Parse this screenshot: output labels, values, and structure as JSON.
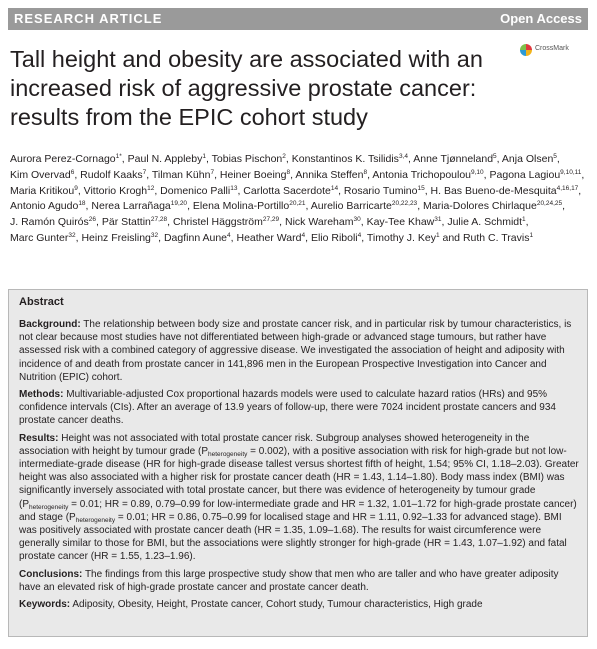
{
  "header": {
    "left_label": "RESEARCH ARTICLE",
    "right_label": "Open Access"
  },
  "title": "Tall height and obesity are associated with an increased risk of aggressive prostate cancer: results from the EPIC cohort study",
  "crossmark_label": "CrossMark",
  "authors": [
    {
      "name": "Aurora Perez-Cornago",
      "sup": "1*"
    },
    {
      "name": "Paul N. Appleby",
      "sup": "1"
    },
    {
      "name": "Tobias Pischon",
      "sup": "2"
    },
    {
      "name": "Konstantinos K. Tsilidis",
      "sup": "3,4"
    },
    {
      "name": "Anne Tjønneland",
      "sup": "5"
    },
    {
      "name": "Anja Olsen",
      "sup": "5"
    },
    {
      "name": "Kim Overvad",
      "sup": "6"
    },
    {
      "name": "Rudolf Kaaks",
      "sup": "7"
    },
    {
      "name": "Tilman Kühn",
      "sup": "7"
    },
    {
      "name": "Heiner Boeing",
      "sup": "8"
    },
    {
      "name": "Annika Steffen",
      "sup": "8"
    },
    {
      "name": "Antonia Trichopoulou",
      "sup": "9,10"
    },
    {
      "name": "Pagona Lagiou",
      "sup": "9,10,11"
    },
    {
      "name": "Maria Kritikou",
      "sup": "9"
    },
    {
      "name": "Vittorio Krogh",
      "sup": "12"
    },
    {
      "name": "Domenico Palli",
      "sup": "13"
    },
    {
      "name": "Carlotta Sacerdote",
      "sup": "14"
    },
    {
      "name": "Rosario Tumino",
      "sup": "15"
    },
    {
      "name": "H. Bas Bueno-de-Mesquita",
      "sup": "4,16,17"
    },
    {
      "name": "Antonio Agudo",
      "sup": "18"
    },
    {
      "name": "Nerea Larrañaga",
      "sup": "19,20"
    },
    {
      "name": "Elena Molina-Portillo",
      "sup": "20,21"
    },
    {
      "name": "Aurelio Barricarte",
      "sup": "20,22,23"
    },
    {
      "name": "Maria-Dolores Chirlaque",
      "sup": "20,24,25"
    },
    {
      "name": "J. Ramón Quirós",
      "sup": "26"
    },
    {
      "name": "Pär Stattin",
      "sup": "27,28"
    },
    {
      "name": "Christel Häggström",
      "sup": "27,29"
    },
    {
      "name": "Nick Wareham",
      "sup": "30"
    },
    {
      "name": "Kay-Tee Khaw",
      "sup": "31"
    },
    {
      "name": "Julie A. Schmidt",
      "sup": "1"
    },
    {
      "name": "Marc Gunter",
      "sup": "32"
    },
    {
      "name": "Heinz Freisling",
      "sup": "32"
    },
    {
      "name": "Dagfinn Aune",
      "sup": "4"
    },
    {
      "name": "Heather Ward",
      "sup": "4"
    },
    {
      "name": "Elio Riboli",
      "sup": "4"
    },
    {
      "name": "Timothy J. Key",
      "sup": "1"
    },
    {
      "name": "Ruth C. Travis",
      "sup": "1"
    }
  ],
  "abstract": {
    "heading": "Abstract",
    "background_label": "Background:",
    "background_text": "The relationship between body size and prostate cancer risk, and in particular risk by tumour characteristics, is not clear because most studies have not differentiated between high-grade or advanced stage tumours, but rather have assessed risk with a combined category of aggressive disease. We investigated the association of height and adiposity with incidence of and death from prostate cancer in 141,896 men in the European Prospective Investigation into Cancer and Nutrition (EPIC) cohort.",
    "methods_label": "Methods:",
    "methods_text": "Multivariable-adjusted Cox proportional hazards models were used to calculate hazard ratios (HRs) and 95% confidence intervals (CIs). After an average of 13.9 years of follow-up, there were 7024 incident prostate cancers and 934 prostate cancer deaths.",
    "results_label": "Results:",
    "results_1": "Height was not associated with total prostate cancer risk. Subgroup analyses showed heterogeneity in the association with height by tumour grade (P",
    "results_sub1": "heterogeneity",
    "results_2": " = 0.002), with a positive association with risk for high-grade but not low-intermediate-grade disease (HR for high-grade disease tallest versus shortest fifth of height, 1.54; 95% CI, 1.18–2.03). Greater height was also associated with a higher risk for prostate cancer death (HR = 1.43, 1.14–1.80). Body mass index (BMI) was significantly inversely associated with total prostate cancer, but there was evidence of heterogeneity by tumour grade (P",
    "results_sub2": "heterogeneity",
    "results_3": " = 0.01; HR = 0.89, 0.79–0.99 for low-intermediate grade and HR = 1.32, 1.01–1.72 for high-grade prostate cancer) and stage (P",
    "results_sub3": "heterogeneity",
    "results_4": " = 0.01; HR = 0.86, 0.75–0.99 for localised stage and HR = 1.11, 0.92–1.33 for advanced stage). BMI was positively associated with prostate cancer death (HR = 1.35, 1.09–1.68). The results for waist circumference were generally similar to those for BMI, but the associations were slightly stronger for high-grade (HR = 1.43, 1.07–1.92) and fatal prostate cancer (HR = 1.55, 1.23–1.96).",
    "conclusions_label": "Conclusions:",
    "conclusions_text": "The findings from this large prospective study show that men who are taller and who have greater adiposity have an elevated risk of high-grade prostate cancer and prostate cancer death.",
    "keywords_label": "Keywords:",
    "keywords_text": "Adiposity, Obesity, Height, Prostate cancer, Cohort study, Tumour characteristics, High grade"
  }
}
